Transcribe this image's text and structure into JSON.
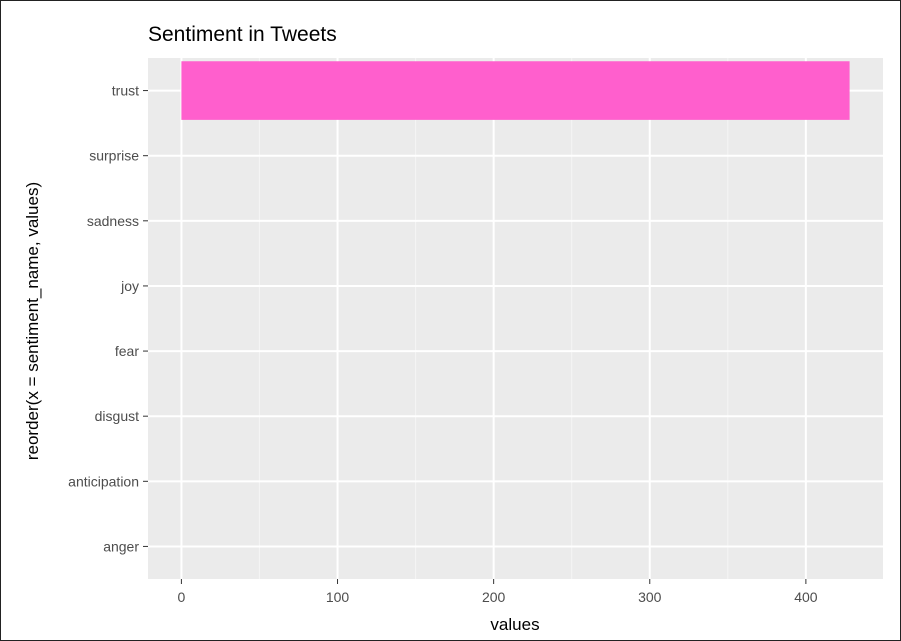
{
  "chart_data": {
    "type": "bar",
    "orientation": "horizontal",
    "title": "Sentiment in Tweets",
    "xlabel": "values",
    "ylabel": "reorder(x = sentiment_name, values)",
    "categories": [
      "trust",
      "surprise",
      "sadness",
      "joy",
      "fear",
      "disgust",
      "anticipation",
      "anger"
    ],
    "values": [
      428,
      0,
      0,
      0,
      0,
      0,
      0,
      0
    ],
    "x_ticks": [
      0,
      100,
      200,
      300,
      400
    ],
    "xlim": [
      -21.4,
      449.4
    ],
    "grid": true,
    "legend": "none",
    "colors": {
      "bar": "#FF5FCD",
      "panel_background": "#EBEBEB",
      "grid_major": "#FFFFFF",
      "grid_minor": "#F5F5F5",
      "tick_label": "#4D4D4D",
      "text": "#000000"
    }
  }
}
